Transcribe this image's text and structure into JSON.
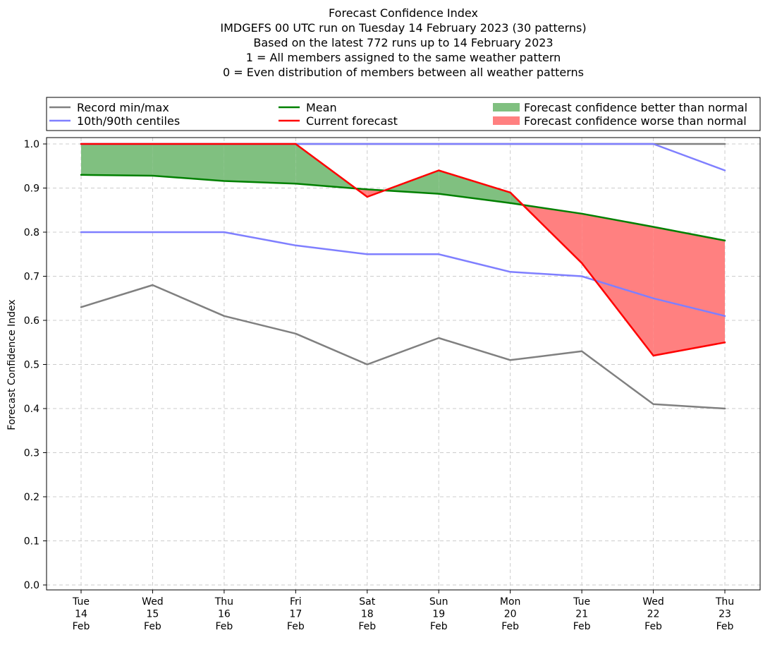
{
  "chart_data": {
    "type": "line",
    "title_lines": [
      "Forecast Confidence Index",
      "IMDGEFS 00 UTC run on Tuesday 14 February 2023 (30 patterns)",
      "Based on the latest 772 runs up to 14 February 2023",
      "1 = All members assigned to the same weather pattern",
      "0 = Even distribution of members between all weather patterns"
    ],
    "xlabel": "",
    "ylabel": "Forecast Confidence Index",
    "ylim": [
      0.0,
      1.0
    ],
    "yticks": [
      "0.0",
      "0.1",
      "0.2",
      "0.3",
      "0.4",
      "0.5",
      "0.6",
      "0.7",
      "0.8",
      "0.9",
      "1.0"
    ],
    "grid": true,
    "legend_position": "top, above plot",
    "categories": [
      [
        "Tue",
        "14",
        "Feb"
      ],
      [
        "Wed",
        "15",
        "Feb"
      ],
      [
        "Thu",
        "16",
        "Feb"
      ],
      [
        "Fri",
        "17",
        "Feb"
      ],
      [
        "Sat",
        "18",
        "Feb"
      ],
      [
        "Sun",
        "19",
        "Feb"
      ],
      [
        "Mon",
        "20",
        "Feb"
      ],
      [
        "Tue",
        "21",
        "Feb"
      ],
      [
        "Wed",
        "22",
        "Feb"
      ],
      [
        "Thu",
        "23",
        "Feb"
      ]
    ],
    "series": [
      {
        "key": "record_min",
        "name": "Record min/max",
        "color": "#808080",
        "values": [
          0.63,
          0.68,
          0.61,
          0.57,
          0.5,
          0.56,
          0.51,
          0.53,
          0.41,
          0.4
        ]
      },
      {
        "key": "record_max",
        "name": "",
        "color": "#808080",
        "values": [
          1.0,
          1.0,
          1.0,
          1.0,
          1.0,
          1.0,
          1.0,
          1.0,
          1.0,
          1.0
        ]
      },
      {
        "key": "p10",
        "name": "10th/90th centiles",
        "color": "#7f7fff",
        "values": [
          0.8,
          0.8,
          0.8,
          0.77,
          0.75,
          0.75,
          0.71,
          0.7,
          0.65,
          0.61
        ]
      },
      {
        "key": "p90",
        "name": "",
        "color": "#7f7fff",
        "values": [
          1.0,
          1.0,
          1.0,
          1.0,
          1.0,
          1.0,
          1.0,
          1.0,
          1.0,
          0.94
        ]
      },
      {
        "key": "mean",
        "name": "Mean",
        "color": "#008000",
        "values": [
          0.93,
          0.928,
          0.916,
          0.91,
          0.897,
          0.887,
          0.866,
          0.842,
          0.812,
          0.781
        ]
      },
      {
        "key": "current",
        "name": "Current forecast",
        "color": "#ff0000",
        "values": [
          1.0,
          1.0,
          1.0,
          1.0,
          0.88,
          0.94,
          0.89,
          0.73,
          0.52,
          0.55
        ]
      }
    ],
    "fills": [
      {
        "name": "Forecast confidence better than normal",
        "color": "#80c080",
        "condition": "current above mean"
      },
      {
        "name": "Forecast confidence worse than normal",
        "color": "#ff8080",
        "condition": "current below mean"
      }
    ]
  }
}
